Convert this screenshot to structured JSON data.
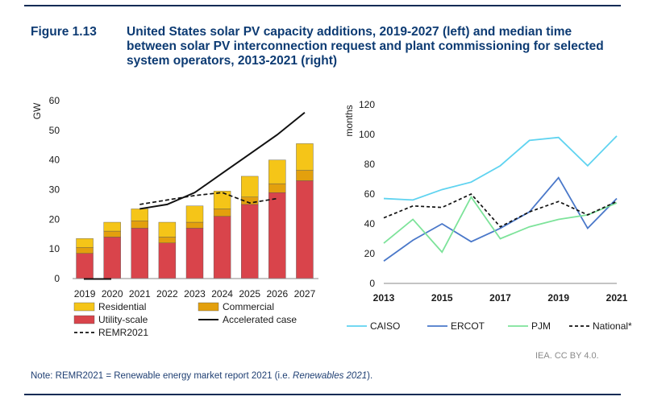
{
  "figure": {
    "label": "Figure 1.13",
    "title": "United States solar PV capacity additions, 2019-2027 (left) and median time between solar PV interconnection request and plant commissioning for selected system operators, 2013-2021 (right)"
  },
  "colors": {
    "residential": "#f5c518",
    "commercial": "#e3a00d",
    "utility": "#d9444b",
    "accelerated": "#111111",
    "remr": "#111111",
    "caiso": "#5fd3f0",
    "ercot": "#4a78c9",
    "pjm": "#7de39a",
    "national": "#111111",
    "title": "#0d3b73"
  },
  "chart_data": [
    {
      "type": "bar",
      "stacked": true,
      "ylabel": "GW",
      "ylim": [
        0,
        60
      ],
      "yticks": [
        0,
        10,
        20,
        30,
        40,
        50,
        60
      ],
      "categories": [
        "2019",
        "2020",
        "2021",
        "2022",
        "2023",
        "2024",
        "2025",
        "2026",
        "2027"
      ],
      "series": [
        {
          "name": "Utility-scale",
          "values": [
            8.5,
            14,
            17,
            12,
            17,
            21,
            25,
            29,
            33
          ]
        },
        {
          "name": "Commercial",
          "values": [
            2,
            2,
            2.5,
            2,
            2,
            2.5,
            2.5,
            3,
            3.5
          ]
        },
        {
          "name": "Residential",
          "values": [
            3,
            3,
            4,
            5,
            5.5,
            6,
            7,
            8,
            9
          ]
        }
      ],
      "lines": [
        {
          "name": "Accelerated case",
          "style": "solid",
          "x": [
            "2021",
            "2022",
            "2023",
            "2024",
            "2025",
            "2026",
            "2027"
          ],
          "values": [
            23.5,
            25,
            29,
            35.5,
            42,
            48.5,
            56
          ]
        },
        {
          "name": "REMR2021",
          "style": "dashed",
          "x": [
            "2021",
            "2022",
            "2023",
            "2024",
            "2025",
            "2026"
          ],
          "values": [
            25,
            26.5,
            28,
            29,
            25.5,
            27
          ]
        }
      ],
      "legend": [
        "Residential",
        "Commercial",
        "Utility-scale",
        "Accelerated case",
        "REMR2021"
      ],
      "legend_position": "bottom"
    },
    {
      "type": "line",
      "ylabel": "months",
      "ylim": [
        0,
        120
      ],
      "yticks": [
        0,
        20,
        40,
        60,
        80,
        100,
        120
      ],
      "x": [
        2013,
        2014,
        2015,
        2016,
        2017,
        2018,
        2019,
        2020,
        2021
      ],
      "xtick_labels": [
        "2013",
        "2015",
        "2017",
        "2019",
        "2021"
      ],
      "series": [
        {
          "name": "CAISO",
          "style": "solid",
          "values": [
            57,
            56,
            63,
            68,
            79,
            96,
            98,
            79,
            99
          ]
        },
        {
          "name": "ERCOT",
          "style": "solid",
          "values": [
            15,
            29,
            40,
            28,
            37,
            48,
            71,
            37,
            57
          ]
        },
        {
          "name": "PJM",
          "style": "solid",
          "values": [
            27,
            43,
            21,
            58,
            30,
            38,
            43,
            46,
            54
          ]
        },
        {
          "name": "National*",
          "style": "dashed",
          "values": [
            44,
            52,
            51,
            60,
            38,
            48,
            55,
            46,
            55
          ]
        }
      ],
      "legend_position": "bottom"
    }
  ],
  "credit": "IEA. CC BY 4.0.",
  "note": {
    "prefix": "Note: REMR2021 = Renewable energy market report 2021 (i.e. ",
    "italic": "Renewables 2021",
    "suffix": ")."
  }
}
